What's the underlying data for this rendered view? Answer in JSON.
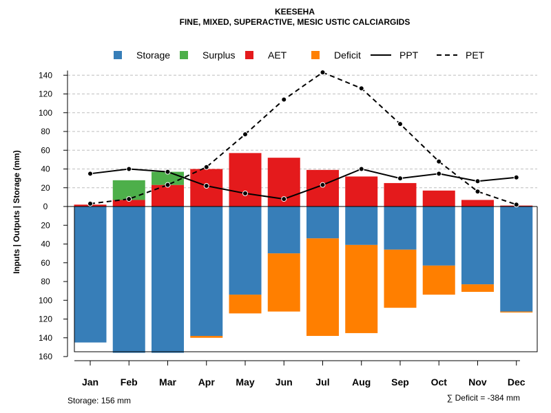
{
  "chart_data": {
    "type": "bar",
    "title": "KEESEHA",
    "subtitle": "FINE, MIXED, SUPERACTIVE, MESIC USTIC CALCIARGIDS",
    "ylabel": "Inputs | Outputs | Storage    (mm)",
    "xlabel": "",
    "categories": [
      "Jan",
      "Feb",
      "Mar",
      "Apr",
      "May",
      "Jun",
      "Jul",
      "Aug",
      "Sep",
      "Oct",
      "Nov",
      "Dec"
    ],
    "ylim": [
      -160,
      150
    ],
    "y_ticks": [
      140,
      120,
      100,
      80,
      60,
      40,
      20,
      0,
      -20,
      -40,
      -60,
      -80,
      -100,
      -120,
      -140,
      -160
    ],
    "y_tick_labels": [
      "140",
      "120",
      "100",
      "80",
      "60",
      "40",
      "20",
      "0",
      "20",
      "40",
      "60",
      "80",
      "100",
      "120",
      "140",
      "160"
    ],
    "grid": true,
    "legend_position": "top",
    "legend": [
      {
        "key": "storage",
        "label": "Storage",
        "kind": "box"
      },
      {
        "key": "surplus",
        "label": "Surplus",
        "kind": "box"
      },
      {
        "key": "aet",
        "label": "AET",
        "kind": "box"
      },
      {
        "key": "deficit",
        "label": "Deficit",
        "kind": "box"
      },
      {
        "key": "ppt",
        "label": "PPT",
        "kind": "solid-line"
      },
      {
        "key": "pet",
        "label": "PET",
        "kind": "dashed-line"
      }
    ],
    "colors": {
      "storage": "#377EB8",
      "surplus": "#4DAF4A",
      "aet": "#E41A1C",
      "deficit": "#FF7F00",
      "lines": "#000000",
      "grid": "#BEBEBE"
    },
    "series": [
      {
        "name": "AET",
        "values": [
          2,
          7,
          23,
          40,
          57,
          52,
          39,
          32,
          25,
          17,
          7,
          1
        ]
      },
      {
        "name": "Surplus",
        "values": [
          0,
          21,
          14,
          0,
          0,
          0,
          0,
          0,
          0,
          0,
          0,
          0
        ]
      },
      {
        "name": "Storage",
        "values": [
          145,
          156,
          156,
          138,
          94,
          50,
          34,
          41,
          46,
          63,
          83,
          112
        ]
      },
      {
        "name": "Deficit",
        "values": [
          0,
          0,
          0,
          2,
          20,
          62,
          104,
          94,
          62,
          31,
          8,
          1
        ]
      },
      {
        "name": "PPT",
        "values": [
          35,
          40,
          37,
          22,
          14,
          8,
          23,
          40,
          30,
          35,
          27,
          31
        ]
      },
      {
        "name": "PET",
        "values": [
          3,
          8,
          23,
          42,
          77,
          114,
          143,
          126,
          88,
          48,
          16,
          2
        ]
      }
    ],
    "footer_left": "Storage: 156 mm",
    "footer_right": "∑ Deficit = -384 mm"
  }
}
